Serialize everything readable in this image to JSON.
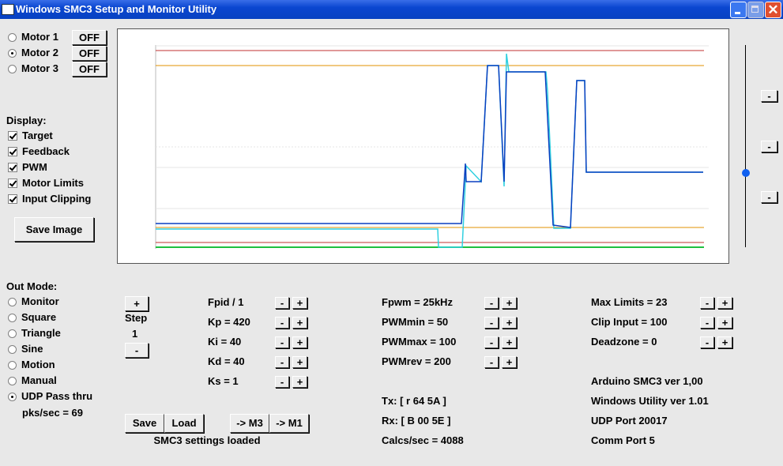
{
  "window": {
    "title": "Windows SMC3 Setup and Monitor Utility"
  },
  "motors": [
    {
      "label": "Motor 1",
      "button": "OFF",
      "selected": false
    },
    {
      "label": "Motor 2",
      "button": "OFF",
      "selected": true
    },
    {
      "label": "Motor 3",
      "button": "OFF",
      "selected": false
    }
  ],
  "display": {
    "heading": "Display:",
    "options": [
      {
        "label": "Target",
        "checked": true
      },
      {
        "label": "Feedback",
        "checked": true
      },
      {
        "label": "PWM",
        "checked": true
      },
      {
        "label": "Motor Limits",
        "checked": true
      },
      {
        "label": "Input Clipping",
        "checked": true
      }
    ]
  },
  "save_image": "Save Image",
  "out_mode": {
    "heading": "Out Mode:",
    "options": [
      {
        "label": "Monitor",
        "selected": false
      },
      {
        "label": "Square",
        "selected": false
      },
      {
        "label": "Triangle",
        "selected": false
      },
      {
        "label": "Sine",
        "selected": false
      },
      {
        "label": "Motion",
        "selected": false
      },
      {
        "label": "Manual",
        "selected": false
      },
      {
        "label": "UDP Pass thru",
        "selected": true
      }
    ],
    "rate": "pks/sec = 69"
  },
  "step": {
    "plus": "+",
    "label": "Step",
    "value": 1,
    "minus": "-"
  },
  "adjust": {
    "minus": "-",
    "plus": "+"
  },
  "pid": [
    "Fpid / 1",
    "Kp = 420",
    "Ki = 40",
    "Kd = 40",
    "Ks = 1"
  ],
  "pwm": [
    "Fpwm = 25kHz",
    "PWMmin = 50",
    "PWMmax = 100",
    "PWMrev = 200"
  ],
  "limits": [
    "Max Limits = 23",
    "Clip Input = 100",
    "Deadzone = 0"
  ],
  "comm": [
    "Tx: [ r 64 5A ]",
    "Rx: [ B 00 5E ]",
    "Calcs/sec = 4088"
  ],
  "versions": [
    "Arduino SMC3 ver 1,00",
    "Windows Utility ver 1.01",
    "UDP Port 20017",
    "Comm Port 5"
  ],
  "file": {
    "save": "Save",
    "load": "Load",
    "to_m3": "-> M3",
    "to_m1": "-> M1",
    "status": "SMC3 settings loaded"
  }
}
